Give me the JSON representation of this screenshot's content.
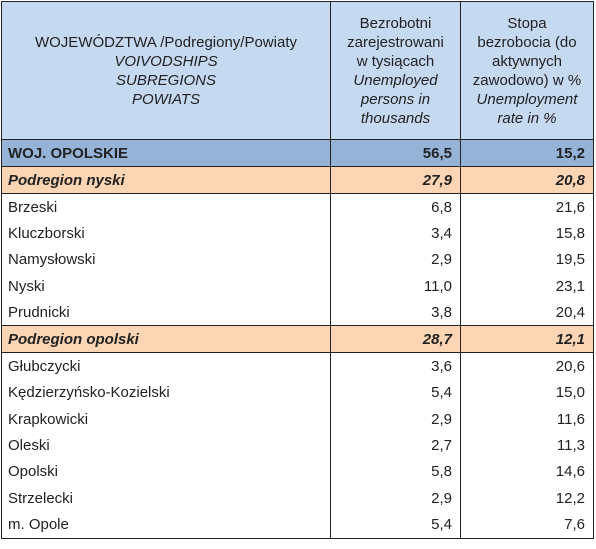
{
  "header": {
    "col1": [
      "WOJEWÓDZTWA /Podregiony/Powiaty",
      "VOIVODSHIPS",
      "SUBREGIONS",
      "POWIATS"
    ],
    "col2": [
      "Bezrobotni",
      "zarejestrowani",
      "w tysiącach",
      "Unemployed",
      "persons in",
      "thousands"
    ],
    "col3": [
      "Stopa",
      "bezrobocia  (do",
      "aktywnych",
      "zawodowo) w %",
      "Unemployment",
      "rate in  %"
    ]
  },
  "rows": [
    {
      "name": "WOJ. OPOLSKIE",
      "unemployed": "56,5",
      "rate": "15,2",
      "kind": "voiv"
    },
    {
      "name": "Podregion nyski",
      "unemployed": "27,9",
      "rate": "20,8",
      "kind": "subr"
    },
    {
      "name": "Brzeski",
      "unemployed": "6,8",
      "rate": "21,6",
      "kind": "row"
    },
    {
      "name": "Kluczborski",
      "unemployed": "3,4",
      "rate": "15,8",
      "kind": "row"
    },
    {
      "name": "Namysłowski",
      "unemployed": "2,9",
      "rate": "19,5",
      "kind": "row"
    },
    {
      "name": "Nyski",
      "unemployed": "11,0",
      "rate": "23,1",
      "kind": "row"
    },
    {
      "name": "Prudnicki",
      "unemployed": "3,8",
      "rate": "20,4",
      "kind": "row"
    },
    {
      "name": "Podregion opolski",
      "unemployed": "28,7",
      "rate": "12,1",
      "kind": "subr"
    },
    {
      "name": "Głubczycki",
      "unemployed": "3,6",
      "rate": "20,6",
      "kind": "row"
    },
    {
      "name": "Kędzierzyńsko-Kozielski",
      "unemployed": "5,4",
      "rate": "15,0",
      "kind": "row"
    },
    {
      "name": "Krapkowicki",
      "unemployed": "2,9",
      "rate": "11,6",
      "kind": "row"
    },
    {
      "name": "Oleski",
      "unemployed": "2,7",
      "rate": "11,3",
      "kind": "row"
    },
    {
      "name": "Opolski",
      "unemployed": "5,8",
      "rate": "14,6",
      "kind": "row"
    },
    {
      "name": "Strzelecki",
      "unemployed": "2,9",
      "rate": "12,2",
      "kind": "row"
    },
    {
      "name": "m. Opole",
      "unemployed": "5,4",
      "rate": "7,6",
      "kind": "row"
    }
  ]
}
